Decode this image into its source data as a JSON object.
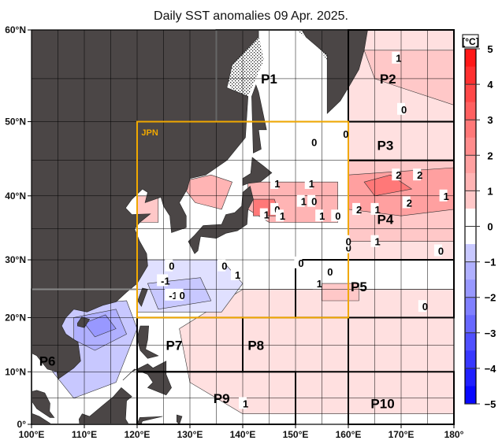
{
  "title": "Daily SST anomalies 09 Apr. 2025.",
  "map": {
    "projection": "mercator",
    "lon_range": [
      100,
      180
    ],
    "lat_range": [
      0,
      60
    ],
    "land_color": "#4b4646",
    "sea_ice": "stippled",
    "x_ticks": [
      "100°E",
      "110°E",
      "120°E",
      "130°E",
      "140°E",
      "150°E",
      "160°E",
      "170°E",
      "180°"
    ],
    "y_ticks": [
      "0°",
      "10°N",
      "20°N",
      "30°N",
      "40°N",
      "50°N",
      "60°N"
    ],
    "jpn_box": {
      "label": "JPN",
      "color": "#f0a800"
    },
    "regions": [
      "P1",
      "P2",
      "P3",
      "P4",
      "P5",
      "P6",
      "P7",
      "P8",
      "P9",
      "P10"
    ],
    "contour_labels": [
      "1",
      "0",
      "0",
      "0",
      "1",
      "1",
      "1",
      "0",
      "1",
      "0",
      "1",
      "1",
      "0",
      "2",
      "2",
      "1",
      "2",
      "2",
      "1",
      "1",
      "0",
      "0",
      "0",
      "1",
      "0",
      "0",
      "-1",
      "-1",
      "0",
      "0",
      "0",
      "1",
      "1",
      "0"
    ]
  },
  "colorbar": {
    "unit": "[°C]",
    "ticks": [
      "5",
      "4",
      "3",
      "2",
      "1",
      "0",
      "−1",
      "−2",
      "−3",
      "−4",
      "−5"
    ],
    "range": [
      -5,
      5
    ],
    "step": 0.5,
    "colors_positive": [
      "#ffe0e0",
      "#ffc8c8",
      "#ffb4b4",
      "#ffa0a0",
      "#ff8c8c",
      "#ff7878",
      "#ff6060",
      "#ff4848",
      "#ff3030",
      "#ff1818"
    ],
    "colors_negative": [
      "#e0e0ff",
      "#c8c8ff",
      "#b0b0ff",
      "#9898ff",
      "#8080ff",
      "#6868ff",
      "#5050ff",
      "#3838ff",
      "#2020ff",
      "#0808ff"
    ]
  }
}
